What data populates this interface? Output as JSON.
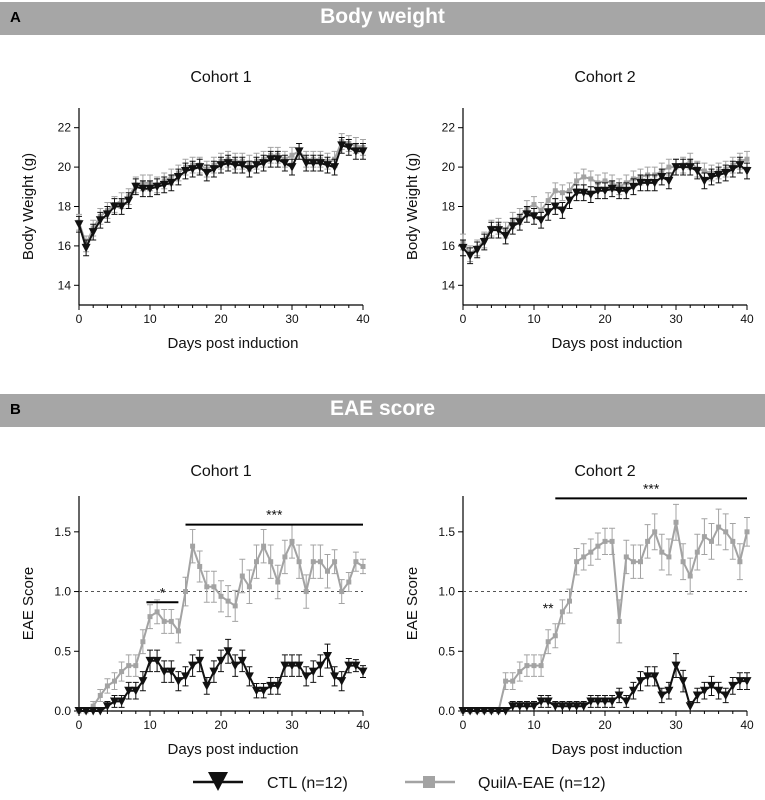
{
  "panels": {
    "a": {
      "letter": "A",
      "title": "Body weight"
    },
    "b": {
      "letter": "B",
      "title": "EAE score"
    }
  },
  "legend": {
    "ctl": "CTL (n=12)",
    "quila": "QuilA-EAE (n=12)"
  },
  "colors": {
    "ctl": "#111111",
    "quila": "#a3a3a3",
    "banner": "#a6a6a6"
  },
  "chart_data": [
    {
      "id": "bw1",
      "type": "line",
      "title": "Cohort 1",
      "xlabel": "Days post induction",
      "ylabel": "Body Weight (g)",
      "xlim": [
        0,
        40
      ],
      "ylim": [
        13,
        23
      ],
      "xticks": [
        0,
        10,
        20,
        30,
        40
      ],
      "yticks": [
        14,
        16,
        18,
        20,
        22
      ],
      "ytick_labels": [
        "14",
        "16",
        "18",
        "20",
        "22"
      ],
      "x": [
        0,
        1,
        2,
        3,
        4,
        5,
        6,
        7,
        8,
        9,
        10,
        11,
        12,
        13,
        14,
        15,
        16,
        17,
        18,
        19,
        20,
        21,
        22,
        23,
        24,
        25,
        26,
        27,
        28,
        29,
        30,
        31,
        32,
        33,
        34,
        35,
        36,
        37,
        38,
        39,
        40
      ],
      "series": [
        {
          "name": "QuilA-EAE (n=12)",
          "key": "quila",
          "values": [
            17.2,
            16.1,
            16.9,
            17.5,
            17.8,
            18.1,
            18.3,
            18.5,
            19.1,
            19.2,
            19.2,
            19.1,
            19.3,
            19.5,
            19.7,
            20,
            20.1,
            20.1,
            19.9,
            20.1,
            20.3,
            20.4,
            20.3,
            20.3,
            20.2,
            20.3,
            20.4,
            20.6,
            20.6,
            20.4,
            20.6,
            20.8,
            20.4,
            20.4,
            20.4,
            20.3,
            20.4,
            21.3,
            21.2,
            21.1,
            21.0
          ],
          "errors": [
            0.4,
            0.4,
            0.4,
            0.4,
            0.4,
            0.4,
            0.4,
            0.4,
            0.4,
            0.4,
            0.4,
            0.4,
            0.4,
            0.4,
            0.4,
            0.4,
            0.4,
            0.4,
            0.4,
            0.4,
            0.4,
            0.4,
            0.4,
            0.4,
            0.4,
            0.4,
            0.4,
            0.4,
            0.4,
            0.4,
            0.4,
            0.4,
            0.4,
            0.4,
            0.4,
            0.4,
            0.4,
            0.4,
            0.4,
            0.4,
            0.4
          ]
        },
        {
          "name": "CTL (n=12)",
          "key": "ctl",
          "values": [
            17.1,
            15.9,
            16.7,
            17.3,
            17.6,
            18.0,
            18.0,
            18.3,
            19.0,
            18.9,
            18.9,
            19.0,
            19.1,
            19.2,
            19.5,
            19.8,
            19.9,
            20.0,
            19.7,
            19.9,
            20.1,
            20.2,
            20.1,
            20.1,
            19.9,
            20.1,
            20.2,
            20.4,
            20.4,
            20.2,
            20.0,
            20.8,
            20.2,
            20.2,
            20.2,
            20.1,
            20.0,
            21.1,
            21.0,
            20.8,
            20.8
          ],
          "errors": [
            0.4,
            0.4,
            0.4,
            0.4,
            0.4,
            0.4,
            0.4,
            0.4,
            0.4,
            0.4,
            0.4,
            0.4,
            0.4,
            0.4,
            0.4,
            0.4,
            0.4,
            0.4,
            0.4,
            0.4,
            0.4,
            0.4,
            0.4,
            0.4,
            0.4,
            0.4,
            0.4,
            0.4,
            0.4,
            0.4,
            0.4,
            0.4,
            0.4,
            0.4,
            0.4,
            0.4,
            0.4,
            0.4,
            0.4,
            0.4,
            0.4
          ]
        }
      ],
      "significance": []
    },
    {
      "id": "bw2",
      "type": "line",
      "title": "Cohort 2",
      "xlabel": "Days post induction",
      "ylabel": "Body Weight (g)",
      "xlim": [
        0,
        40
      ],
      "ylim": [
        13,
        23
      ],
      "xticks": [
        0,
        10,
        20,
        30,
        40
      ],
      "yticks": [
        14,
        16,
        18,
        20,
        22
      ],
      "ytick_labels": [
        "14",
        "16",
        "18",
        "20",
        "22"
      ],
      "x": [
        0,
        1,
        2,
        3,
        4,
        5,
        6,
        7,
        8,
        9,
        10,
        11,
        12,
        13,
        14,
        15,
        16,
        17,
        18,
        19,
        20,
        21,
        22,
        23,
        24,
        25,
        26,
        27,
        28,
        29,
        30,
        31,
        32,
        33,
        34,
        35,
        36,
        37,
        38,
        39,
        40
      ],
      "series": [
        {
          "name": "QuilA-EAE (n=12)",
          "key": "quila",
          "values": [
            16.2,
            15.6,
            15.9,
            16.3,
            16.9,
            17.0,
            16.8,
            17.3,
            17.5,
            17.9,
            18.1,
            17.8,
            18.3,
            18.8,
            18.7,
            18.8,
            19.3,
            19.5,
            19.4,
            19.2,
            19.3,
            19.2,
            19.0,
            19.2,
            19.4,
            19.5,
            19.6,
            19.6,
            19.8,
            20.0,
            20.0,
            20.1,
            20.3,
            19.9,
            19.8,
            19.7,
            19.8,
            19.9,
            20.1,
            20.3,
            20.4
          ],
          "errors": [
            0.4,
            0.4,
            0.4,
            0.4,
            0.4,
            0.4,
            0.4,
            0.4,
            0.4,
            0.4,
            0.4,
            0.4,
            0.4,
            0.4,
            0.4,
            0.4,
            0.4,
            0.4,
            0.4,
            0.4,
            0.4,
            0.4,
            0.4,
            0.4,
            0.4,
            0.4,
            0.4,
            0.4,
            0.4,
            0.4,
            0.4,
            0.4,
            0.4,
            0.4,
            0.4,
            0.4,
            0.4,
            0.4,
            0.4,
            0.4,
            0.4
          ]
        },
        {
          "name": "CTL (n=12)",
          "key": "ctl",
          "values": [
            15.9,
            15.5,
            15.8,
            16.2,
            16.8,
            16.8,
            16.5,
            17.0,
            17.2,
            17.6,
            17.5,
            17.3,
            17.7,
            18.0,
            17.8,
            18.3,
            18.7,
            18.7,
            18.6,
            18.8,
            18.8,
            18.9,
            18.8,
            18.8,
            19.0,
            19.2,
            19.2,
            19.2,
            19.5,
            19.3,
            20.0,
            20.0,
            20.0,
            19.8,
            19.3,
            19.5,
            19.6,
            19.7,
            19.9,
            20.1,
            19.8
          ],
          "errors": [
            0.4,
            0.4,
            0.4,
            0.4,
            0.4,
            0.4,
            0.4,
            0.4,
            0.4,
            0.4,
            0.4,
            0.4,
            0.4,
            0.4,
            0.4,
            0.4,
            0.4,
            0.4,
            0.4,
            0.4,
            0.4,
            0.4,
            0.4,
            0.4,
            0.4,
            0.4,
            0.4,
            0.4,
            0.4,
            0.4,
            0.4,
            0.4,
            0.4,
            0.4,
            0.4,
            0.4,
            0.4,
            0.4,
            0.4,
            0.4,
            0.4
          ]
        }
      ],
      "significance": []
    },
    {
      "id": "eae1",
      "type": "line",
      "title": "Cohort 1",
      "xlabel": "Days post induction",
      "ylabel": "EAE Score",
      "xlim": [
        0,
        40
      ],
      "ylim": [
        0,
        1.8
      ],
      "xticks": [
        0,
        10,
        20,
        30,
        40
      ],
      "yticks": [
        0,
        0.5,
        1.0,
        1.5
      ],
      "ytick_labels": [
        "0.0",
        "0.5",
        "1.0",
        "1.5"
      ],
      "reference_line": 1.0,
      "x": [
        0,
        1,
        2,
        3,
        4,
        5,
        6,
        7,
        8,
        9,
        10,
        11,
        12,
        13,
        14,
        15,
        16,
        17,
        18,
        19,
        20,
        21,
        22,
        23,
        24,
        25,
        26,
        27,
        28,
        29,
        30,
        31,
        32,
        33,
        34,
        35,
        36,
        37,
        38,
        39,
        40
      ],
      "series": [
        {
          "name": "QuilA-EAE (n=12)",
          "key": "quila",
          "values": [
            0,
            0,
            0.04,
            0.13,
            0.21,
            0.25,
            0.33,
            0.38,
            0.38,
            0.58,
            0.79,
            0.83,
            0.75,
            0.75,
            0.67,
            1.0,
            1.38,
            1.21,
            1.04,
            1.04,
            0.96,
            0.92,
            0.88,
            1.13,
            1.04,
            1.25,
            1.38,
            1.25,
            1.08,
            1.29,
            1.42,
            1.25,
            1.0,
            1.25,
            1.25,
            1.17,
            1.25,
            1.0,
            1.08,
            1.25,
            1.21
          ],
          "errors": [
            0,
            0,
            0.04,
            0.05,
            0.06,
            0.07,
            0.08,
            0.09,
            0.09,
            0.1,
            0.1,
            0.1,
            0.1,
            0.1,
            0.1,
            0.12,
            0.14,
            0.13,
            0.13,
            0.13,
            0.13,
            0.13,
            0.13,
            0.14,
            0.14,
            0.14,
            0.14,
            0.14,
            0.14,
            0.14,
            0.14,
            0.14,
            0.14,
            0.14,
            0.14,
            0.14,
            0.1,
            0.1,
            0.08,
            0.08,
            0.06
          ]
        },
        {
          "name": "CTL (n=12)",
          "key": "ctl",
          "values": [
            0,
            0,
            0,
            0,
            0.04,
            0.08,
            0.08,
            0.17,
            0.17,
            0.25,
            0.42,
            0.42,
            0.33,
            0.33,
            0.25,
            0.29,
            0.38,
            0.42,
            0.21,
            0.33,
            0.42,
            0.5,
            0.38,
            0.42,
            0.29,
            0.17,
            0.17,
            0.21,
            0.21,
            0.38,
            0.38,
            0.38,
            0.29,
            0.33,
            0.38,
            0.46,
            0.29,
            0.25,
            0.38,
            0.38,
            0.33
          ],
          "errors": [
            0,
            0,
            0,
            0,
            0.04,
            0.05,
            0.05,
            0.07,
            0.07,
            0.08,
            0.09,
            0.09,
            0.09,
            0.09,
            0.08,
            0.08,
            0.09,
            0.09,
            0.07,
            0.09,
            0.09,
            0.1,
            0.09,
            0.09,
            0.08,
            0.06,
            0.06,
            0.07,
            0.07,
            0.09,
            0.09,
            0.09,
            0.08,
            0.09,
            0.09,
            0.1,
            0.08,
            0.08,
            0.06,
            0.05,
            0.05
          ]
        }
      ],
      "significance": [
        {
          "label": "*",
          "x_from": 9.5,
          "x_to": 14,
          "y": 0.91
        },
        {
          "label": "***",
          "x_from": 15,
          "x_to": 40,
          "y": 1.56
        }
      ]
    },
    {
      "id": "eae2",
      "type": "line",
      "title": "Cohort 2",
      "xlabel": "Days post induction",
      "ylabel": "EAE Score",
      "xlim": [
        0,
        40
      ],
      "ylim": [
        0,
        1.8
      ],
      "xticks": [
        0,
        10,
        20,
        30,
        40
      ],
      "yticks": [
        0,
        0.5,
        1.0,
        1.5
      ],
      "ytick_labels": [
        "0.0",
        "0.5",
        "1.0",
        "1.5"
      ],
      "reference_line": 1.0,
      "x": [
        0,
        1,
        2,
        3,
        4,
        5,
        6,
        7,
        8,
        9,
        10,
        11,
        12,
        13,
        14,
        15,
        16,
        17,
        18,
        19,
        20,
        21,
        22,
        23,
        24,
        25,
        26,
        27,
        28,
        29,
        30,
        31,
        32,
        33,
        34,
        35,
        36,
        37,
        38,
        39,
        40
      ],
      "series": [
        {
          "name": "QuilA-EAE (n=12)",
          "key": "quila",
          "values": [
            0,
            0,
            0,
            0,
            0,
            0,
            0.25,
            0.25,
            0.33,
            0.38,
            0.38,
            0.38,
            0.58,
            0.63,
            0.83,
            0.92,
            1.25,
            1.29,
            1.33,
            1.38,
            1.42,
            1.42,
            0.75,
            1.29,
            1.25,
            1.25,
            1.42,
            1.5,
            1.33,
            1.29,
            1.58,
            1.25,
            1.13,
            1.33,
            1.46,
            1.42,
            1.54,
            1.5,
            1.42,
            1.25,
            1.5
          ],
          "errors": [
            0,
            0,
            0,
            0,
            0,
            0,
            0.07,
            0.07,
            0.08,
            0.09,
            0.09,
            0.09,
            0.1,
            0.1,
            0.1,
            0.1,
            0.11,
            0.11,
            0.11,
            0.11,
            0.11,
            0.11,
            0.18,
            0.14,
            0.14,
            0.14,
            0.14,
            0.15,
            0.15,
            0.15,
            0.15,
            0.15,
            0.15,
            0.15,
            0.15,
            0.15,
            0.15,
            0.15,
            0.15,
            0.15,
            0.12
          ]
        },
        {
          "name": "CTL (n=12)",
          "key": "ctl",
          "values": [
            0,
            0,
            0,
            0,
            0,
            0,
            0,
            0.04,
            0.04,
            0.04,
            0.04,
            0.08,
            0.08,
            0.04,
            0.04,
            0.04,
            0.04,
            0.04,
            0.08,
            0.08,
            0.08,
            0.08,
            0.13,
            0.08,
            0.17,
            0.25,
            0.29,
            0.29,
            0.13,
            0.17,
            0.38,
            0.25,
            0.04,
            0.13,
            0.17,
            0.21,
            0.17,
            0.13,
            0.21,
            0.25,
            0.25
          ],
          "errors": [
            0,
            0,
            0,
            0,
            0,
            0,
            0,
            0.04,
            0.04,
            0.04,
            0.04,
            0.05,
            0.05,
            0.04,
            0.04,
            0.04,
            0.04,
            0.04,
            0.05,
            0.05,
            0.05,
            0.05,
            0.06,
            0.05,
            0.07,
            0.08,
            0.08,
            0.08,
            0.06,
            0.07,
            0.1,
            0.09,
            0.04,
            0.06,
            0.07,
            0.08,
            0.07,
            0.06,
            0.07,
            0.07,
            0.07
          ]
        }
      ],
      "significance": [
        {
          "label": "**",
          "x_from": 12,
          "x_to": 12,
          "y": 0.78
        },
        {
          "label": "***",
          "x_from": 13,
          "x_to": 40,
          "y": 1.78
        }
      ]
    }
  ]
}
